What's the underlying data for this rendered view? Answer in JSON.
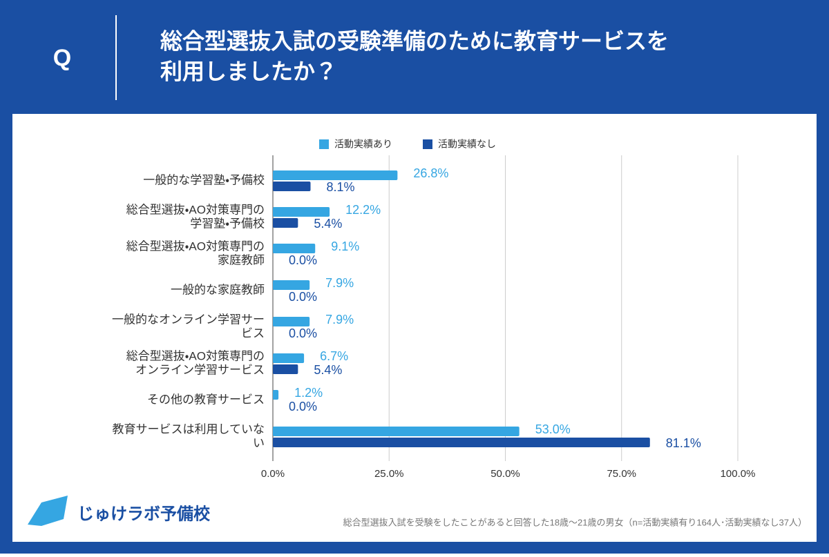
{
  "header": {
    "mark": "Q",
    "title": [
      "総合型選抜入試の受験準備のために教育サービスを",
      "利用しましたか？"
    ]
  },
  "chart_data": {
    "type": "hbar",
    "categories": [
      [
        "一般的な学習塾・予備校"
      ],
      [
        "総合型選抜・AO対策専門の",
        "学習塾・予備校"
      ],
      [
        "総合型選抜・AO対策専門の",
        "家庭教師"
      ],
      [
        "一般的な家庭教師"
      ],
      [
        "一般的なオンライン学習サー",
        "ビス"
      ],
      [
        "総合型選抜・AO対策専門の",
        "オンライン学習サービス"
      ],
      [
        "その他の教育サービス"
      ],
      [
        "教育サービスは利用していな",
        "い"
      ]
    ],
    "series": [
      {
        "name": "活動実績あり",
        "color": "#35a6e2",
        "values": [
          26.8,
          12.2,
          9.1,
          7.9,
          7.9,
          6.7,
          1.2,
          53.0
        ],
        "value_labels": [
          "26.8%",
          "12.2%",
          "9.1%",
          "7.9%",
          "7.9%",
          "6.7%",
          "1.2%",
          "53.0%"
        ]
      },
      {
        "name": "活動実績なし",
        "color": "#1a4fa3",
        "values": [
          8.1,
          5.4,
          0.0,
          0.0,
          0.0,
          5.4,
          0.0,
          81.1
        ],
        "value_labels": [
          "8.1%",
          "5.4%",
          "0.0%",
          "0.0%",
          "0.0%",
          "5.4%",
          "0.0%",
          "81.1%"
        ]
      }
    ],
    "xlim": [
      0,
      100
    ],
    "xticks": [
      {
        "value": 0,
        "label": "0.0%"
      },
      {
        "value": 25,
        "label": "25.0%"
      },
      {
        "value": 50,
        "label": "50.0%"
      },
      {
        "value": 75,
        "label": "75.0%"
      },
      {
        "value": 100,
        "label": "100.0%"
      }
    ],
    "grid": true,
    "legend": "top"
  },
  "footer": {
    "logo": "じゅけラボ予備校",
    "note": "総合型選抜入試を受験をしたことがあると回答した18歳～21歳の男女（n=活動実績有り164人･活動実績なし37人）"
  }
}
